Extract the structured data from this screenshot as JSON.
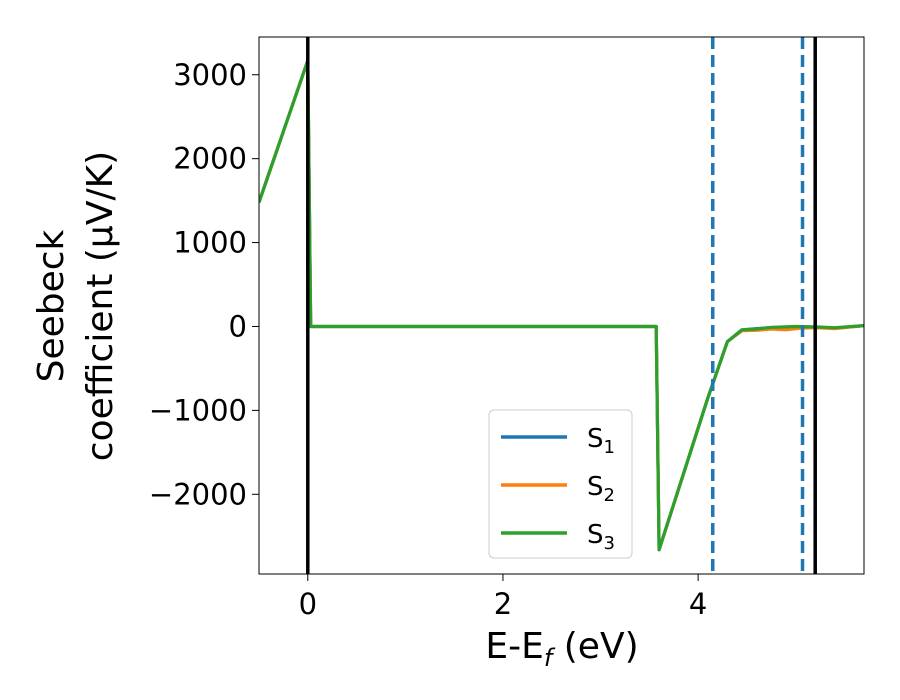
{
  "chart_data": {
    "type": "line",
    "xlabel_main": "E-E",
    "xlabel_sub": "f",
    "xlabel_unit": " (eV)",
    "ylabel_line1": "Seebeck",
    "ylabel_line2": "coefficient  (μV/K)",
    "xlim": [
      -0.5,
      5.7
    ],
    "ylim": [
      -2950,
      3450
    ],
    "xticks": [
      0,
      2,
      4
    ],
    "yticks": [
      -2000,
      -1000,
      0,
      1000,
      2000,
      3000
    ],
    "legend_position": "lower-center",
    "grid": false,
    "vlines_solid": [
      0,
      5.2
    ],
    "vlines_dashed": [
      4.15,
      5.07
    ],
    "series": [
      {
        "name": "S",
        "sub": "1",
        "color": "#1f77b4",
        "points": [
          [
            -0.5,
            1480
          ],
          [
            0,
            3170
          ],
          [
            0.03,
            0
          ],
          [
            3.57,
            0
          ],
          [
            3.6,
            -2660
          ],
          [
            4.1,
            -850
          ],
          [
            4.3,
            -180
          ],
          [
            4.45,
            -40
          ],
          [
            4.6,
            -25
          ],
          [
            4.75,
            -15
          ],
          [
            4.9,
            -10
          ],
          [
            5.05,
            -5
          ],
          [
            5.2,
            -10
          ],
          [
            5.4,
            -20
          ],
          [
            5.7,
            10
          ]
        ]
      },
      {
        "name": "S",
        "sub": "2",
        "color": "#ff7f0e",
        "points": [
          [
            -0.5,
            1480
          ],
          [
            0,
            3170
          ],
          [
            0.03,
            0
          ],
          [
            3.57,
            0
          ],
          [
            3.6,
            -2660
          ],
          [
            4.1,
            -850
          ],
          [
            4.3,
            -180
          ],
          [
            4.45,
            -50
          ],
          [
            4.6,
            -45
          ],
          [
            4.75,
            -30
          ],
          [
            4.9,
            -40
          ],
          [
            5.05,
            -20
          ],
          [
            5.2,
            -15
          ],
          [
            5.4,
            -25
          ],
          [
            5.7,
            10
          ]
        ]
      },
      {
        "name": "S",
        "sub": "3",
        "color": "#2ca02c",
        "points": [
          [
            -0.5,
            1480
          ],
          [
            0,
            3170
          ],
          [
            0.03,
            0
          ],
          [
            3.57,
            0
          ],
          [
            3.6,
            -2660
          ],
          [
            4.1,
            -850
          ],
          [
            4.3,
            -180
          ],
          [
            4.45,
            -40
          ],
          [
            4.6,
            -30
          ],
          [
            4.75,
            -10
          ],
          [
            4.9,
            -5
          ],
          [
            5.0,
            0
          ],
          [
            5.2,
            -5
          ],
          [
            5.4,
            -15
          ],
          [
            5.7,
            10
          ]
        ]
      }
    ]
  }
}
